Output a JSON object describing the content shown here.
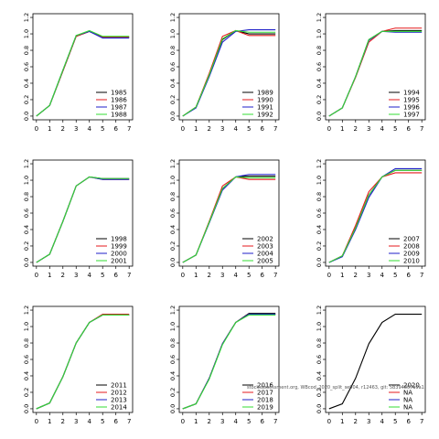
{
  "colors": {
    "series": [
      "#000000",
      "#e41a1c",
      "#1f1fc8",
      "#33dd33"
    ]
  },
  "overlay_text": "stocksassessment.org, WBcod_2020_split_se004, r12463, git: 5b394807a0a1",
  "chart_data": [
    {
      "type": "line",
      "xlim": [
        0,
        7
      ],
      "ylim": [
        0,
        1.2
      ],
      "xticks": [
        "0",
        "1",
        "2",
        "3",
        "4",
        "5",
        "6",
        "7"
      ],
      "yticks": [
        "0.0",
        "0.2",
        "0.4",
        "0.6",
        "0.8",
        "1.0",
        "1.2"
      ],
      "legend_position": "bottom-right",
      "series": [
        {
          "name": "1985",
          "x": [
            0,
            1,
            2,
            3,
            4,
            5,
            6,
            7
          ],
          "values": [
            0.0,
            0.13,
            0.55,
            0.97,
            1.03,
            0.96,
            0.96,
            0.96
          ]
        },
        {
          "name": "1986",
          "x": [
            0,
            1,
            2,
            3,
            4,
            5,
            6,
            7
          ],
          "values": [
            0.0,
            0.13,
            0.55,
            0.97,
            1.03,
            0.96,
            0.96,
            0.96
          ]
        },
        {
          "name": "1987",
          "x": [
            0,
            1,
            2,
            3,
            4,
            5,
            6,
            7
          ],
          "values": [
            0.0,
            0.13,
            0.56,
            0.98,
            1.03,
            0.95,
            0.95,
            0.95
          ]
        },
        {
          "name": "1988",
          "x": [
            0,
            1,
            2,
            3,
            4,
            5,
            6,
            7
          ],
          "values": [
            0.0,
            0.13,
            0.56,
            0.98,
            1.04,
            0.97,
            0.97,
            0.97
          ]
        }
      ]
    },
    {
      "type": "line",
      "xlim": [
        0,
        7
      ],
      "ylim": [
        0,
        1.2
      ],
      "xticks": [
        "0",
        "1",
        "2",
        "3",
        "4",
        "5",
        "6",
        "7"
      ],
      "yticks": [
        "0.0",
        "0.2",
        "0.4",
        "0.6",
        "0.8",
        "1.0",
        "1.2"
      ],
      "legend_position": "bottom-right",
      "series": [
        {
          "name": "1989",
          "x": [
            0,
            1,
            2,
            3,
            4,
            5,
            6,
            7
          ],
          "values": [
            0.0,
            0.11,
            0.5,
            0.93,
            1.04,
            1.0,
            1.0,
            1.0
          ]
        },
        {
          "name": "1990",
          "x": [
            0,
            1,
            2,
            3,
            4,
            5,
            6,
            7
          ],
          "values": [
            0.0,
            0.11,
            0.52,
            0.97,
            1.04,
            0.98,
            0.98,
            0.98
          ]
        },
        {
          "name": "1991",
          "x": [
            0,
            1,
            2,
            3,
            4,
            5,
            6,
            7
          ],
          "values": [
            0.0,
            0.1,
            0.48,
            0.9,
            1.03,
            1.05,
            1.05,
            1.05
          ]
        },
        {
          "name": "1992",
          "x": [
            0,
            1,
            2,
            3,
            4,
            5,
            6,
            7
          ],
          "values": [
            0.0,
            0.11,
            0.5,
            0.94,
            1.04,
            1.02,
            1.02,
            1.02
          ]
        }
      ]
    },
    {
      "type": "line",
      "xlim": [
        0,
        7
      ],
      "ylim": [
        0,
        1.2
      ],
      "xticks": [
        "0",
        "1",
        "2",
        "3",
        "4",
        "5",
        "6",
        "7"
      ],
      "yticks": [
        "0.0",
        "0.2",
        "0.4",
        "0.6",
        "0.8",
        "1.0",
        "1.2"
      ],
      "legend_position": "bottom-right",
      "series": [
        {
          "name": "1994",
          "x": [
            0,
            1,
            2,
            3,
            4,
            5,
            6,
            7
          ],
          "values": [
            0.0,
            0.1,
            0.48,
            0.93,
            1.03,
            1.04,
            1.04,
            1.04
          ]
        },
        {
          "name": "1995",
          "x": [
            0,
            1,
            2,
            3,
            4,
            5,
            6,
            7
          ],
          "values": [
            0.0,
            0.1,
            0.47,
            0.9,
            1.03,
            1.07,
            1.07,
            1.07
          ]
        },
        {
          "name": "1996",
          "x": [
            0,
            1,
            2,
            3,
            4,
            5,
            6,
            7
          ],
          "values": [
            0.0,
            0.1,
            0.48,
            0.92,
            1.03,
            1.02,
            1.02,
            1.02
          ]
        },
        {
          "name": "1997",
          "x": [
            0,
            1,
            2,
            3,
            4,
            5,
            6,
            7
          ],
          "values": [
            0.0,
            0.1,
            0.48,
            0.93,
            1.03,
            1.03,
            1.03,
            1.03
          ]
        }
      ]
    },
    {
      "type": "line",
      "xlim": [
        0,
        7
      ],
      "ylim": [
        0,
        1.2
      ],
      "xticks": [
        "0",
        "1",
        "2",
        "3",
        "4",
        "5",
        "6",
        "7"
      ],
      "yticks": [
        "0.0",
        "0.2",
        "0.4",
        "0.6",
        "0.8",
        "1.0",
        "1.2"
      ],
      "legend_position": "bottom-right",
      "series": [
        {
          "name": "1998",
          "x": [
            0,
            1,
            2,
            3,
            4,
            5,
            6,
            7
          ],
          "values": [
            0.0,
            0.1,
            0.5,
            0.93,
            1.04,
            1.02,
            1.02,
            1.02
          ]
        },
        {
          "name": "1999",
          "x": [
            0,
            1,
            2,
            3,
            4,
            5,
            6,
            7
          ],
          "values": [
            0.0,
            0.1,
            0.5,
            0.93,
            1.04,
            1.01,
            1.01,
            1.01
          ]
        },
        {
          "name": "2000",
          "x": [
            0,
            1,
            2,
            3,
            4,
            5,
            6,
            7
          ],
          "values": [
            0.0,
            0.1,
            0.5,
            0.93,
            1.04,
            1.01,
            1.01,
            1.01
          ]
        },
        {
          "name": "2001",
          "x": [
            0,
            1,
            2,
            3,
            4,
            5,
            6,
            7
          ],
          "values": [
            0.0,
            0.1,
            0.5,
            0.93,
            1.04,
            1.02,
            1.02,
            1.02
          ]
        }
      ]
    },
    {
      "type": "line",
      "xlim": [
        0,
        7
      ],
      "ylim": [
        0,
        1.2
      ],
      "xticks": [
        "0",
        "1",
        "2",
        "3",
        "4",
        "5",
        "6",
        "7"
      ],
      "yticks": [
        "0.0",
        "0.2",
        "0.4",
        "0.6",
        "0.8",
        "1.0",
        "1.2"
      ],
      "legend_position": "bottom-right",
      "series": [
        {
          "name": "2002",
          "x": [
            0,
            1,
            2,
            3,
            4,
            5,
            6,
            7
          ],
          "values": [
            0.0,
            0.09,
            0.49,
            0.9,
            1.04,
            1.05,
            1.05,
            1.05
          ]
        },
        {
          "name": "2003",
          "x": [
            0,
            1,
            2,
            3,
            4,
            5,
            6,
            7
          ],
          "values": [
            0.0,
            0.09,
            0.5,
            0.93,
            1.04,
            1.01,
            1.01,
            1.01
          ]
        },
        {
          "name": "2004",
          "x": [
            0,
            1,
            2,
            3,
            4,
            5,
            6,
            7
          ],
          "values": [
            0.0,
            0.09,
            0.48,
            0.88,
            1.04,
            1.07,
            1.07,
            1.07
          ]
        },
        {
          "name": "2005",
          "x": [
            0,
            1,
            2,
            3,
            4,
            5,
            6,
            7
          ],
          "values": [
            0.0,
            0.09,
            0.49,
            0.9,
            1.04,
            1.03,
            1.03,
            1.03
          ]
        }
      ]
    },
    {
      "type": "line",
      "xlim": [
        0,
        7
      ],
      "ylim": [
        0,
        1.2
      ],
      "xticks": [
        "0",
        "1",
        "2",
        "3",
        "4",
        "5",
        "6",
        "7"
      ],
      "yticks": [
        "0.0",
        "0.2",
        "0.4",
        "0.6",
        "0.8",
        "1.0",
        "1.2"
      ],
      "legend_position": "bottom-right",
      "series": [
        {
          "name": "2007",
          "x": [
            0,
            1,
            2,
            3,
            4,
            5,
            6,
            7
          ],
          "values": [
            0.0,
            0.08,
            0.42,
            0.82,
            1.04,
            1.12,
            1.12,
            1.12
          ]
        },
        {
          "name": "2008",
          "x": [
            0,
            1,
            2,
            3,
            4,
            5,
            6,
            7
          ],
          "values": [
            0.0,
            0.08,
            0.45,
            0.86,
            1.04,
            1.09,
            1.09,
            1.09
          ]
        },
        {
          "name": "2009",
          "x": [
            0,
            1,
            2,
            3,
            4,
            5,
            6,
            7
          ],
          "values": [
            0.0,
            0.07,
            0.4,
            0.79,
            1.04,
            1.14,
            1.14,
            1.14
          ]
        },
        {
          "name": "2010",
          "x": [
            0,
            1,
            2,
            3,
            4,
            5,
            6,
            7
          ],
          "values": [
            0.0,
            0.08,
            0.42,
            0.82,
            1.04,
            1.12,
            1.12,
            1.12
          ]
        }
      ]
    },
    {
      "type": "line",
      "xlim": [
        0,
        7
      ],
      "ylim": [
        0,
        1.2
      ],
      "xticks": [
        "0",
        "1",
        "2",
        "3",
        "4",
        "5",
        "6",
        "7"
      ],
      "yticks": [
        "0.0",
        "0.2",
        "0.4",
        "0.6",
        "0.8",
        "1.0",
        "1.2"
      ],
      "legend_position": "bottom-right",
      "series": [
        {
          "name": "2011",
          "x": [
            0,
            1,
            2,
            3,
            4,
            5,
            6,
            7
          ],
          "values": [
            0.0,
            0.07,
            0.39,
            0.8,
            1.05,
            1.14,
            1.14,
            1.14
          ]
        },
        {
          "name": "2012",
          "x": [
            0,
            1,
            2,
            3,
            4,
            5,
            6,
            7
          ],
          "values": [
            0.0,
            0.07,
            0.39,
            0.8,
            1.05,
            1.15,
            1.15,
            1.15
          ]
        },
        {
          "name": "2013",
          "x": [
            0,
            1,
            2,
            3,
            4,
            5,
            6,
            7
          ],
          "values": [
            0.0,
            0.07,
            0.39,
            0.8,
            1.05,
            1.14,
            1.14,
            1.14
          ]
        },
        {
          "name": "2014",
          "x": [
            0,
            1,
            2,
            3,
            4,
            5,
            6,
            7
          ],
          "values": [
            0.0,
            0.07,
            0.39,
            0.8,
            1.05,
            1.14,
            1.14,
            1.14
          ]
        }
      ]
    },
    {
      "type": "line",
      "xlim": [
        0,
        7
      ],
      "ylim": [
        0,
        1.2
      ],
      "xticks": [
        "0",
        "1",
        "2",
        "3",
        "4",
        "5",
        "6",
        "7"
      ],
      "yticks": [
        "0.0",
        "0.2",
        "0.4",
        "0.6",
        "0.8",
        "1.0",
        "1.2"
      ],
      "legend_position": "bottom-right",
      "series": [
        {
          "name": "2016",
          "x": [
            0,
            1,
            2,
            3,
            4,
            5,
            6,
            7
          ],
          "values": [
            0.0,
            0.06,
            0.37,
            0.79,
            1.05,
            1.16,
            1.16,
            1.16
          ]
        },
        {
          "name": "2017",
          "x": [
            0,
            1,
            2,
            3,
            4,
            5,
            6,
            7
          ],
          "values": [
            0.0,
            0.06,
            0.37,
            0.79,
            1.05,
            1.15,
            1.15,
            1.15
          ]
        },
        {
          "name": "2018",
          "x": [
            0,
            1,
            2,
            3,
            4,
            5,
            6,
            7
          ],
          "values": [
            0.0,
            0.06,
            0.37,
            0.79,
            1.05,
            1.15,
            1.15,
            1.15
          ]
        },
        {
          "name": "2019",
          "x": [
            0,
            1,
            2,
            3,
            4,
            5,
            6,
            7
          ],
          "values": [
            0.0,
            0.06,
            0.36,
            0.78,
            1.05,
            1.14,
            1.14,
            1.14
          ]
        }
      ]
    },
    {
      "type": "line",
      "xlim": [
        0,
        7
      ],
      "ylim": [
        0,
        1.2
      ],
      "xticks": [
        "0",
        "1",
        "2",
        "3",
        "4",
        "5",
        "6",
        "7"
      ],
      "yticks": [
        "0.0",
        "0.2",
        "0.4",
        "0.6",
        "0.8",
        "1.0",
        "1.2"
      ],
      "legend_position": "bottom-right",
      "series": [
        {
          "name": "2020",
          "x": [
            0,
            1,
            2,
            3,
            4,
            5,
            6,
            7
          ],
          "values": [
            0.0,
            0.06,
            0.37,
            0.79,
            1.05,
            1.15,
            1.15,
            1.15
          ]
        },
        {
          "name": "NA",
          "x": [],
          "values": []
        },
        {
          "name": "NA",
          "x": [],
          "values": []
        },
        {
          "name": "NA",
          "x": [],
          "values": []
        }
      ]
    }
  ]
}
